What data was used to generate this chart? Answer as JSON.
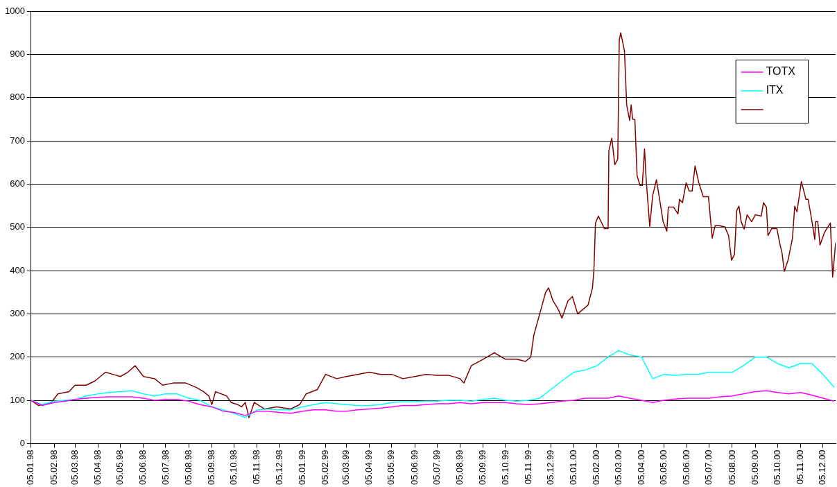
{
  "chart_data": {
    "type": "line",
    "legend": "top right",
    "grid": "y",
    "xlim": [
      "1998-01-05",
      "2000-12-22"
    ],
    "xticks": [
      {
        "value": "1998-01-05",
        "label": "05.01.98"
      },
      {
        "value": "1998-02-05",
        "label": "05.02.98"
      },
      {
        "value": "1998-03-05",
        "label": "05.03.98"
      },
      {
        "value": "1998-04-05",
        "label": "05.04.98"
      },
      {
        "value": "1998-05-05",
        "label": "05.05.98"
      },
      {
        "value": "1998-06-05",
        "label": "05.06.98"
      },
      {
        "value": "1998-07-05",
        "label": "05.07.98"
      },
      {
        "value": "1998-08-05",
        "label": "05.08.98"
      },
      {
        "value": "1998-09-05",
        "label": "05.09.98"
      },
      {
        "value": "1998-10-05",
        "label": "05.10.98"
      },
      {
        "value": "1998-11-05",
        "label": "05.11.98"
      },
      {
        "value": "1998-12-05",
        "label": "05.12.98"
      },
      {
        "value": "1999-01-05",
        "label": "05.01.99"
      },
      {
        "value": "1999-02-05",
        "label": "05.02.99"
      },
      {
        "value": "1999-03-05",
        "label": "05.03.99"
      },
      {
        "value": "1999-04-05",
        "label": "05.04.99"
      },
      {
        "value": "1999-05-05",
        "label": "05.05.99"
      },
      {
        "value": "1999-06-05",
        "label": "05.06.99"
      },
      {
        "value": "1999-07-05",
        "label": "05.07.99"
      },
      {
        "value": "1999-08-05",
        "label": "05.08.99"
      },
      {
        "value": "1999-09-05",
        "label": "05.09.99"
      },
      {
        "value": "1999-10-05",
        "label": "05.10.99"
      },
      {
        "value": "1999-11-05",
        "label": "05.11.99"
      },
      {
        "value": "1999-12-05",
        "label": "05.12.99"
      },
      {
        "value": "2000-01-05",
        "label": "05.01.00"
      },
      {
        "value": "2000-02-05",
        "label": "05.02.00"
      },
      {
        "value": "2000-03-05",
        "label": "05.03.00"
      },
      {
        "value": "2000-04-05",
        "label": "05.04.00"
      },
      {
        "value": "2000-05-05",
        "label": "05.05.00"
      },
      {
        "value": "2000-06-05",
        "label": "05.06.00"
      },
      {
        "value": "2000-07-05",
        "label": "05.07.00"
      },
      {
        "value": "2000-08-05",
        "label": "05.08.00"
      },
      {
        "value": "2000-09-05",
        "label": "05.09.00"
      },
      {
        "value": "2000-10-05",
        "label": "05.10.00"
      },
      {
        "value": "2000-11-05",
        "label": "05.11.00"
      },
      {
        "value": "2000-12-05",
        "label": "05.12.00"
      }
    ],
    "ylim": [
      0,
      1000
    ],
    "yticks": [
      0,
      100,
      200,
      300,
      400,
      500,
      600,
      700,
      800,
      900,
      1000
    ],
    "x": [
      "1998-01-05",
      "1998-01-20",
      "1998-02-05",
      "1998-02-20",
      "1998-03-05",
      "1998-03-20",
      "1998-04-05",
      "1998-04-20",
      "1998-05-05",
      "1998-05-20",
      "1998-06-05",
      "1998-06-20",
      "1998-07-05",
      "1998-07-20",
      "1998-08-05",
      "1998-08-20",
      "1998-09-05",
      "1998-09-20",
      "1998-10-05",
      "1998-10-20",
      "1998-11-05",
      "1998-11-20",
      "1998-12-05",
      "1998-12-20",
      "1999-01-05",
      "1999-01-20",
      "1999-02-05",
      "1999-02-20",
      "1999-03-05",
      "1999-03-20",
      "1999-04-05",
      "1999-04-20",
      "1999-05-05",
      "1999-05-20",
      "1999-06-05",
      "1999-06-20",
      "1999-07-05",
      "1999-07-20",
      "1999-08-05",
      "1999-08-20",
      "1999-09-05",
      "1999-09-20",
      "1999-10-05",
      "1999-10-20",
      "1999-11-05",
      "1999-11-20",
      "1999-12-05",
      "1999-12-20",
      "2000-01-05",
      "2000-01-20",
      "2000-02-05",
      "2000-02-20",
      "2000-03-05",
      "2000-03-20",
      "2000-04-05",
      "2000-04-20",
      "2000-05-05",
      "2000-05-20",
      "2000-06-05",
      "2000-06-20",
      "2000-07-05",
      "2000-07-20",
      "2000-08-05",
      "2000-08-20",
      "2000-09-05",
      "2000-09-20",
      "2000-10-05",
      "2000-10-20",
      "2000-11-05",
      "2000-11-20",
      "2000-12-05",
      "2000-12-20"
    ],
    "series": [
      {
        "name": "TOTX",
        "color": "#ff00ff",
        "values": [
          100,
          88,
          95,
          98,
          102,
          105,
          107,
          108,
          108,
          108,
          105,
          100,
          102,
          102,
          98,
          90,
          85,
          75,
          72,
          65,
          75,
          75,
          72,
          70,
          75,
          78,
          78,
          75,
          75,
          78,
          80,
          82,
          85,
          88,
          88,
          90,
          92,
          92,
          95,
          92,
          95,
          95,
          95,
          92,
          90,
          92,
          95,
          98,
          100,
          105,
          105,
          105,
          110,
          105,
          100,
          95,
          100,
          103,
          105,
          105,
          105,
          108,
          110,
          115,
          120,
          122,
          118,
          115,
          118,
          112,
          105,
          98
        ]
      },
      {
        "name": "ITX",
        "color": "#00ffff",
        "values": [
          100,
          90,
          98,
          100,
          102,
          110,
          115,
          118,
          120,
          122,
          115,
          110,
          115,
          115,
          105,
          100,
          85,
          78,
          70,
          60,
          78,
          80,
          78,
          78,
          85,
          90,
          95,
          92,
          90,
          88,
          88,
          90,
          95,
          97,
          97,
          98,
          98,
          100,
          100,
          98,
          102,
          105,
          100,
          98,
          100,
          105,
          125,
          145,
          165,
          170,
          180,
          200,
          215,
          205,
          200,
          150,
          160,
          158,
          160,
          160,
          165,
          165,
          165,
          180,
          200,
          200,
          185,
          175,
          185,
          185,
          160,
          130
        ]
      },
      {
        "color": "#800000",
        "x": [
          "1998-01-05",
          "1998-01-15",
          "1998-02-01",
          "1998-02-10",
          "1998-02-25",
          "1998-03-05",
          "1998-03-20",
          "1998-04-01",
          "1998-04-15",
          "1998-04-25",
          "1998-05-05",
          "1998-05-15",
          "1998-05-25",
          "1998-06-05",
          "1998-06-20",
          "1998-07-01",
          "1998-07-15",
          "1998-08-01",
          "1998-08-15",
          "1998-08-25",
          "1998-09-01",
          "1998-09-05",
          "1998-09-10",
          "1998-09-25",
          "1998-10-01",
          "1998-10-10",
          "1998-10-15",
          "1998-10-20",
          "1998-10-25",
          "1998-11-01",
          "1998-11-15",
          "1998-12-01",
          "1998-12-20",
          "1999-01-01",
          "1999-01-10",
          "1999-01-25",
          "1999-02-05",
          "1999-02-20",
          "1999-03-05",
          "1999-03-20",
          "1999-04-05",
          "1999-04-20",
          "1999-05-05",
          "1999-05-20",
          "1999-06-05",
          "1999-06-20",
          "1999-07-05",
          "1999-07-20",
          "1999-08-05",
          "1999-08-10",
          "1999-08-20",
          "1999-09-05",
          "1999-09-20",
          "1999-10-05",
          "1999-10-20",
          "1999-11-01",
          "1999-11-08",
          "1999-11-12",
          "1999-11-20",
          "1999-11-28",
          "1999-12-02",
          "1999-12-08",
          "1999-12-15",
          "1999-12-20",
          "1999-12-28",
          "2000-01-03",
          "2000-01-10",
          "2000-01-24",
          "2000-01-30",
          "2000-02-01",
          "2000-02-03",
          "2000-02-07",
          "2000-02-15",
          "2000-02-20",
          "2000-02-21",
          "2000-02-25",
          "2000-02-29",
          "2000-03-04",
          "2000-03-06",
          "2000-03-08",
          "2000-03-13",
          "2000-03-16",
          "2000-03-20",
          "2000-03-22",
          "2000-03-24",
          "2000-03-27",
          "2000-03-30",
          "2000-04-03",
          "2000-04-06",
          "2000-04-09",
          "2000-04-11",
          "2000-04-16",
          "2000-04-20",
          "2000-04-25",
          "2000-04-29",
          "2000-05-04",
          "2000-05-09",
          "2000-05-11",
          "2000-05-18",
          "2000-05-24",
          "2000-05-26",
          "2000-05-30",
          "2000-06-04",
          "2000-06-08",
          "2000-06-12",
          "2000-06-16",
          "2000-06-21",
          "2000-06-27",
          "2000-07-04",
          "2000-07-09",
          "2000-07-13",
          "2000-07-18",
          "2000-07-26",
          "2000-07-31",
          "2000-08-04",
          "2000-08-08",
          "2000-08-11",
          "2000-08-14",
          "2000-08-17",
          "2000-08-21",
          "2000-08-25",
          "2000-08-31",
          "2000-09-05",
          "2000-09-13",
          "2000-09-16",
          "2000-09-20",
          "2000-09-22",
          "2000-09-27",
          "2000-10-04",
          "2000-10-08",
          "2000-10-11",
          "2000-10-14",
          "2000-10-19",
          "2000-10-25",
          "2000-10-28",
          "2000-10-31",
          "2000-11-06",
          "2000-11-12",
          "2000-11-15",
          "2000-11-19",
          "2000-11-24",
          "2000-11-25",
          "2000-11-28",
          "2000-12-01",
          "2000-12-07",
          "2000-12-15",
          "2000-12-18",
          "2000-12-22"
        ],
        "values": [
          100,
          88,
          95,
          115,
          120,
          135,
          135,
          145,
          165,
          160,
          155,
          165,
          180,
          155,
          150,
          135,
          140,
          140,
          130,
          120,
          110,
          90,
          120,
          110,
          95,
          90,
          85,
          95,
          60,
          95,
          80,
          85,
          80,
          90,
          115,
          125,
          160,
          150,
          155,
          160,
          165,
          160,
          160,
          150,
          155,
          160,
          158,
          158,
          150,
          140,
          180,
          195,
          210,
          195,
          195,
          190,
          200,
          250,
          300,
          350,
          360,
          330,
          310,
          290,
          330,
          340,
          300,
          320,
          360,
          405,
          510,
          526,
          497,
          497,
          677,
          706,
          645,
          658,
          933,
          950,
          908,
          783,
          747,
          783,
          750,
          749,
          619,
          597,
          597,
          681,
          616,
          502,
          574,
          610,
          568,
          513,
          491,
          547,
          547,
          531,
          565,
          557,
          603,
          584,
          584,
          642,
          603,
          571,
          571,
          475,
          504,
          504,
          501,
          481,
          424,
          437,
          539,
          549,
          513,
          496,
          529,
          513,
          529,
          526,
          557,
          546,
          481,
          497,
          497,
          462,
          440,
          398,
          424,
          475,
          549,
          536,
          606,
          565,
          565,
          526,
          472,
          513,
          513,
          459,
          488,
          510,
          385,
          465
        ]
      }
    ]
  }
}
